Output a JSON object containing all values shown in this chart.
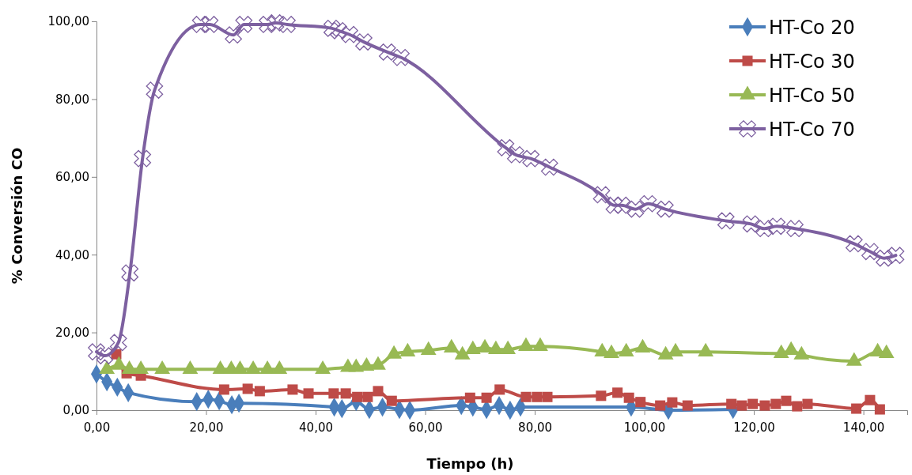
{
  "chart_data": {
    "type": "line",
    "xlabel": "Tiempo (h)",
    "ylabel": "% Conversión CO",
    "xlim": [
      0,
      148
    ],
    "ylim": [
      0,
      100
    ],
    "xticks": [
      {
        "value": 0,
        "label": "0,00"
      },
      {
        "value": 20,
        "label": "20,00"
      },
      {
        "value": 40,
        "label": "40,00"
      },
      {
        "value": 60,
        "label": "60,00"
      },
      {
        "value": 80,
        "label": "80,00"
      },
      {
        "value": 100,
        "label": "100,00"
      },
      {
        "value": 120,
        "label": "120,00"
      },
      {
        "value": 140,
        "label": "140,00"
      }
    ],
    "yticks": [
      {
        "value": 0,
        "label": "0,00"
      },
      {
        "value": 20,
        "label": "20,00"
      },
      {
        "value": 40,
        "label": "40,00"
      },
      {
        "value": 60,
        "label": "60,00"
      },
      {
        "value": 80,
        "label": "80,00"
      },
      {
        "value": 100,
        "label": "100,00"
      }
    ],
    "grid": false,
    "legend": "top right",
    "line_style": "solid",
    "series": [
      {
        "name": "HT-Co 20",
        "color": "#4a7ebb",
        "marker": "diamond",
        "x": [
          0,
          1.9,
          3.8,
          5.8,
          18.3,
          20.4,
          22.4,
          24.7,
          26,
          43.4,
          44.8,
          47.4,
          49.8,
          52.2,
          55.3,
          57.2,
          66.6,
          68.7,
          71.2,
          73.5,
          75.5,
          77.4,
          97.6,
          104.4,
          116.2
        ],
        "values": [
          9.3,
          7.3,
          5.9,
          4.5,
          2.2,
          2.8,
          2.4,
          1.4,
          1.8,
          0.8,
          0.4,
          2.2,
          0.2,
          0.8,
          0.2,
          0,
          1.2,
          0.8,
          0.2,
          1.2,
          0,
          0.8,
          0.8,
          0,
          0.2
        ]
      },
      {
        "name": "HT-Co 30",
        "color": "#be4b48",
        "marker": "square",
        "x": [
          3.6,
          5.5,
          8.1,
          23.3,
          27.6,
          29.8,
          35.8,
          38.7,
          43.3,
          45.5,
          47.6,
          49.5,
          51.4,
          53.9,
          68.2,
          71.2,
          73.6,
          78.4,
          80.4,
          82.3,
          92.1,
          95.1,
          97.2,
          99.3,
          102.9,
          105.1,
          107.9,
          115.9,
          117.8,
          119.8,
          122,
          124,
          125.9,
          127.9,
          129.8,
          138.7,
          141.2,
          143
        ],
        "values": [
          14.4,
          9.5,
          8.9,
          5.3,
          5.5,
          4.9,
          5.3,
          4.3,
          4.3,
          4.3,
          3.4,
          3.4,
          4.9,
          2.4,
          3.2,
          3.2,
          5.3,
          3.4,
          3.4,
          3.4,
          3.7,
          4.5,
          3.2,
          2.1,
          1.2,
          2,
          1.2,
          1.6,
          1.2,
          1.6,
          1.2,
          1.6,
          2.4,
          1,
          1.6,
          0.4,
          2.6,
          0.2
        ]
      },
      {
        "name": "HT-Co 50",
        "color": "#98b954",
        "marker": "triangle",
        "x": [
          1.9,
          4.1,
          6,
          8.1,
          12,
          17.1,
          22.6,
          24.6,
          26.2,
          28.6,
          31.2,
          33.4,
          41.3,
          45.9,
          47.4,
          49.3,
          51.4,
          54.3,
          56.8,
          60.6,
          64.8,
          66.8,
          68.7,
          70.9,
          72.9,
          75.1,
          78.4,
          81,
          92.3,
          94,
          96.7,
          99.7,
          103.9,
          105.7,
          111.2,
          125,
          126.8,
          128.7,
          138.3,
          142.6,
          144.2
        ],
        "values": [
          10.5,
          11.6,
          10.5,
          10.5,
          10.5,
          10.5,
          10.5,
          10.5,
          10.5,
          10.5,
          10.5,
          10.5,
          10.5,
          11,
          11,
          11.3,
          11.6,
          14.4,
          15,
          15.4,
          16,
          14.2,
          15.6,
          16,
          15.6,
          15.6,
          16.4,
          16.4,
          15,
          14.6,
          15,
          16,
          14.2,
          15,
          15,
          14.6,
          15.4,
          14.2,
          12.6,
          15,
          14.6
        ]
      },
      {
        "name": "HT-Co 70",
        "color": "#7d60a0",
        "marker": "cross",
        "x": [
          0,
          1.5,
          4,
          6.1,
          8.4,
          10.6,
          19,
          20.7,
          25,
          26.9,
          31.2,
          32.7,
          34.8,
          43,
          44.2,
          46.2,
          48.8,
          53.1,
          55.6,
          74.7,
          76.5,
          79.3,
          82.7,
          92.2,
          94.5,
          95.9,
          98.4,
          100.7,
          103.8,
          114.9,
          119.5,
          121.9,
          124.2,
          127.5,
          138.3,
          141.2,
          143.8,
          145.9
        ],
        "values": [
          15,
          14,
          17.4,
          35.3,
          64.7,
          82.3,
          99.2,
          99.2,
          96.5,
          99.2,
          99.2,
          99.6,
          99.2,
          98.2,
          97.6,
          96.6,
          94.7,
          92.1,
          90.7,
          67.5,
          65.7,
          64.7,
          62.5,
          55.4,
          52.7,
          52.7,
          51.7,
          53.1,
          51.7,
          48.7,
          47.9,
          46.7,
          47.3,
          46.7,
          42.8,
          40.8,
          39.1,
          39.8
        ]
      }
    ]
  }
}
